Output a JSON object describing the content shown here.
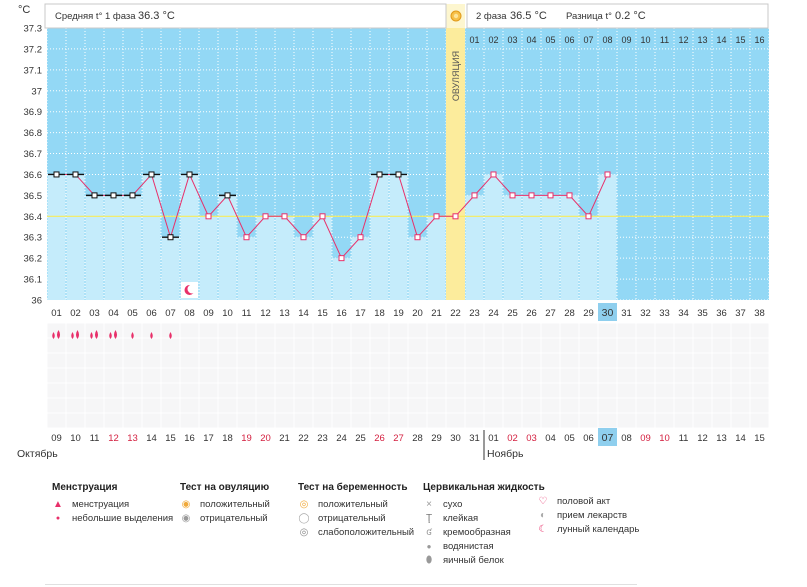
{
  "header": {
    "axis_unit": "°C",
    "phase1_label": "Средняя t° 1 фаза",
    "phase1_value": "36.3 °C",
    "phase2_label": "2 фаза",
    "phase2_value": "36.5 °C",
    "diff_label": "Разница t°",
    "diff_value": "0.2 °C"
  },
  "ovulation_label": "ОВУЛЯЦИЯ",
  "chart_data": {
    "type": "line",
    "title": "",
    "ylabel": "°C",
    "ylim": [
      36.0,
      37.3
    ],
    "yticks": [
      "37.3",
      "37.2",
      "37.1",
      "37",
      "36.9",
      "36.8",
      "36.7",
      "36.6",
      "36.5",
      "36.4",
      "36.3",
      "36.2",
      "36.1",
      "36"
    ],
    "coverline": 36.4,
    "ovulation_day_index": 21,
    "current_day_index": 29,
    "cycle_days": [
      "01",
      "02",
      "03",
      "04",
      "05",
      "06",
      "07",
      "08",
      "09",
      "10",
      "11",
      "12",
      "13",
      "14",
      "15",
      "16",
      "17",
      "18",
      "19",
      "20",
      "21",
      "22",
      "23",
      "24",
      "25",
      "26",
      "27",
      "28",
      "29",
      "30",
      "31",
      "32",
      "33",
      "34",
      "35",
      "36",
      "37",
      "38"
    ],
    "second_phase_day_labels": [
      "01",
      "02",
      "03",
      "04",
      "05",
      "06",
      "07",
      "08",
      "09",
      "10",
      "11",
      "12",
      "13",
      "14",
      "15",
      "16"
    ],
    "temperatures": [
      36.6,
      36.6,
      36.5,
      36.5,
      36.5,
      36.6,
      36.3,
      36.6,
      36.4,
      36.5,
      36.3,
      36.4,
      36.4,
      36.3,
      36.4,
      36.2,
      36.3,
      36.6,
      36.6,
      36.3,
      36.4,
      36.4,
      36.5,
      36.6,
      36.5,
      36.5,
      36.5,
      36.5,
      36.4,
      36.6
    ],
    "dash_marked_days": [
      0,
      1,
      2,
      3,
      4,
      5,
      6,
      7,
      9,
      17,
      18
    ],
    "moon_day_index": 7,
    "menstruation_heavy_days": [
      0,
      1,
      2,
      3
    ],
    "menstruation_light_days": [
      4,
      5,
      6
    ],
    "calendar_dates": [
      "09",
      "10",
      "11",
      "12",
      "13",
      "14",
      "15",
      "16",
      "17",
      "18",
      "19",
      "20",
      "21",
      "22",
      "23",
      "24",
      "25",
      "26",
      "27",
      "28",
      "29",
      "30",
      "31",
      "01",
      "02",
      "03",
      "04",
      "05",
      "06",
      "07",
      "08",
      "09",
      "10",
      "11",
      "12",
      "13",
      "14",
      "15"
    ],
    "red_date_indices": [
      3,
      4,
      10,
      11,
      17,
      18,
      24,
      25,
      31,
      32
    ],
    "month_labels": [
      "Октябрь",
      "Ноябрь"
    ],
    "month_start_index_2": 23,
    "today_calendar_index": 29
  },
  "colors": {
    "sky": "#93d8f5",
    "grid": "#ffffff",
    "bar": "#c5ecfb",
    "ovulation": "#fcec9c",
    "line": "#e8306a",
    "coverline": "#f7ec5c",
    "today": "#8fcfee",
    "red_text": "#d42040",
    "text": "#333333"
  },
  "legend": {
    "menstruation": {
      "title": "Менструация",
      "items": [
        "менструация",
        "небольшие выделения"
      ]
    },
    "ovulation_test": {
      "title": "Тест на овуляцию",
      "items": [
        "положительный",
        "отрицательный"
      ]
    },
    "pregnancy_test": {
      "title": "Тест на беременность",
      "items": [
        "положительный",
        "отрицательный",
        "слабоположительный"
      ]
    },
    "cervical": {
      "title": "Цервикальная жидкость",
      "items": [
        "сухо",
        "клейкая",
        "кремообразная",
        "водянистая",
        "яичный белок"
      ]
    },
    "other": {
      "items": [
        "половой акт",
        "прием лекарств",
        "лунный календарь"
      ]
    }
  }
}
